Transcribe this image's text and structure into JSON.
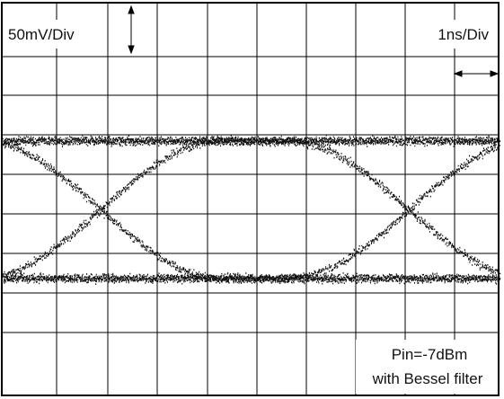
{
  "labels": {
    "vertical_scale": "50mV/Div",
    "horizontal_scale": "1ns/Div",
    "power": "Pin=-7dBm",
    "filter": "with Bessel filter"
  }
}
